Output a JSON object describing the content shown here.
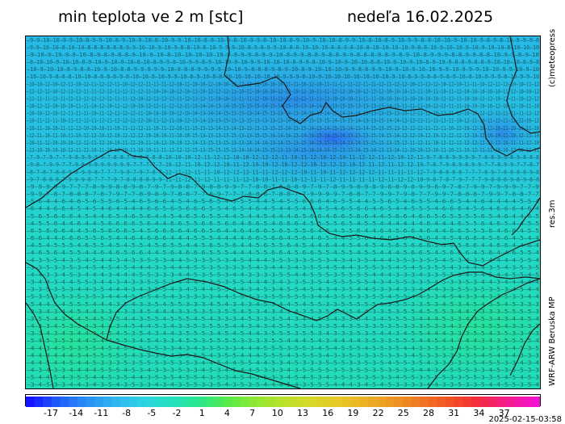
{
  "header": {
    "title": "min teplota ve 2 m [stc]",
    "date": "nedeľa 16.02.2025"
  },
  "side_labels": {
    "copyright": "(c)meteopress",
    "resolution": "res.3m",
    "model": "WRF-ARW Beruska MP"
  },
  "colorbar": {
    "ticks": [
      "-17",
      "-14",
      "-11",
      "-8",
      "-5",
      "-2",
      "1",
      "4",
      "7",
      "10",
      "13",
      "16",
      "19",
      "22",
      "25",
      "28",
      "31",
      "34",
      "37"
    ],
    "colors": [
      "#1414ff",
      "#1f5dfa",
      "#2a8ef5",
      "#2fb4f0",
      "#2ed2e4",
      "#25e0c0",
      "#27e68e",
      "#55ea4a",
      "#8ee834",
      "#b8e22c",
      "#d6d828",
      "#e6c826",
      "#ecb024",
      "#ee9424",
      "#f07424",
      "#f25024",
      "#f42a40",
      "#f41c90",
      "#f414d0"
    ]
  },
  "timestamp": "2025-02-15-03:58"
}
